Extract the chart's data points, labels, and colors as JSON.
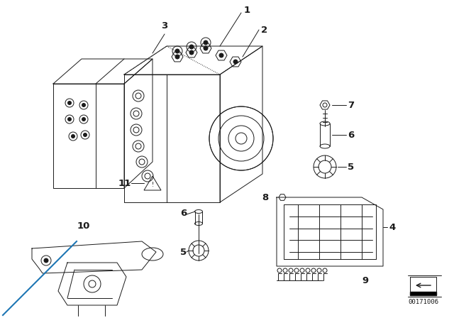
{
  "background_color": "#ffffff",
  "diagram_id": "00171006",
  "line_color": "#1a1a1a",
  "label_font_size": 9.5,
  "diagram_font_size": 6.5
}
